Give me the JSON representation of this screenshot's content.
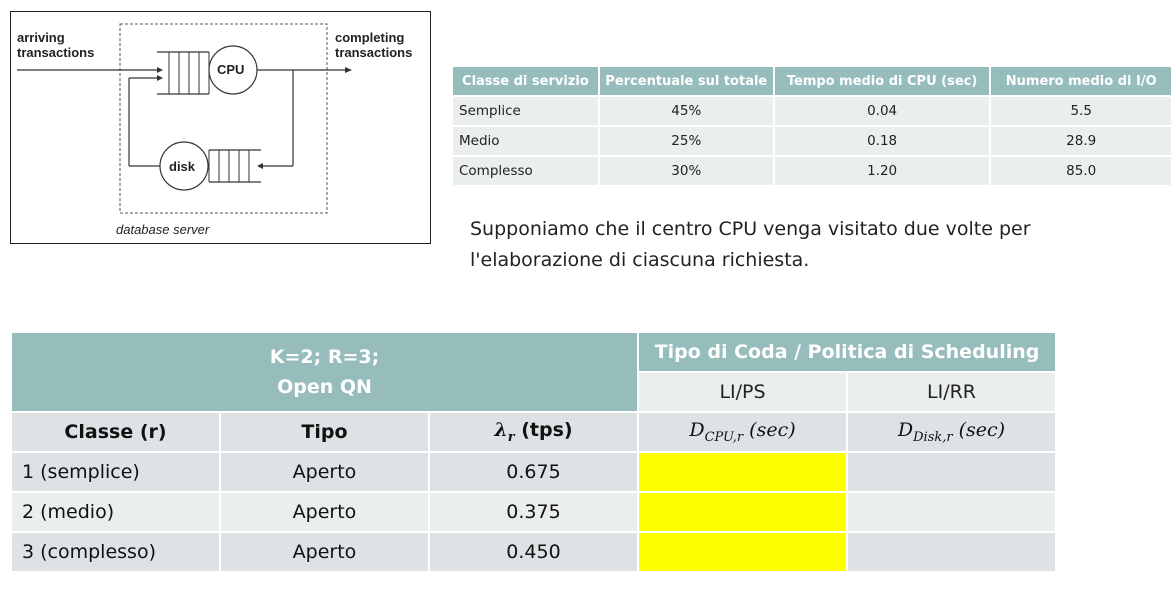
{
  "diagram": {
    "arriving": [
      "arriving",
      "transactions"
    ],
    "completing": [
      "completing",
      "transactions"
    ],
    "cpu": "CPU",
    "disk": "disk",
    "server": "database server"
  },
  "service_table": {
    "headers": [
      "Classe di servizio",
      "Percentuale sul totale",
      "Tempo medio di CPU (sec)",
      "Numero medio di I/O"
    ],
    "rows": [
      [
        "Semplice",
        "45%",
        "0.04",
        "5.5"
      ],
      [
        "Medio",
        "25%",
        "0.18",
        "28.9"
      ],
      [
        "Complesso",
        "30%",
        "1.20",
        "85.0"
      ]
    ]
  },
  "note": {
    "line1": "Supponiamo che il centro CPU venga visitato due volte per",
    "line2": "l'elaborazione di ciascuna richiesta."
  },
  "qn_table": {
    "header_left_1": "K=2; R=3;",
    "header_left_2": "Open QN",
    "header_right": "Tipo di Coda / Politica di Scheduling",
    "policy_cpu": "LI/PS",
    "policy_disk": "LI/RR",
    "col_class": "Classe (r)",
    "col_type": "Tipo",
    "col_lambda_suffix": " (tps)",
    "rows": [
      {
        "classe": "1 (semplice)",
        "tipo": "Aperto",
        "lambda": "0.675"
      },
      {
        "classe": "2 (medio)",
        "tipo": "Aperto",
        "lambda": "0.375"
      },
      {
        "classe": "3 (complesso)",
        "tipo": "Aperto",
        "lambda": "0.450"
      }
    ],
    "highlight_color": "#ffff00"
  },
  "colors": {
    "header_teal": "#96bcbc",
    "row_light": "#ebeeef",
    "row_mid": "#dde3e4"
  }
}
